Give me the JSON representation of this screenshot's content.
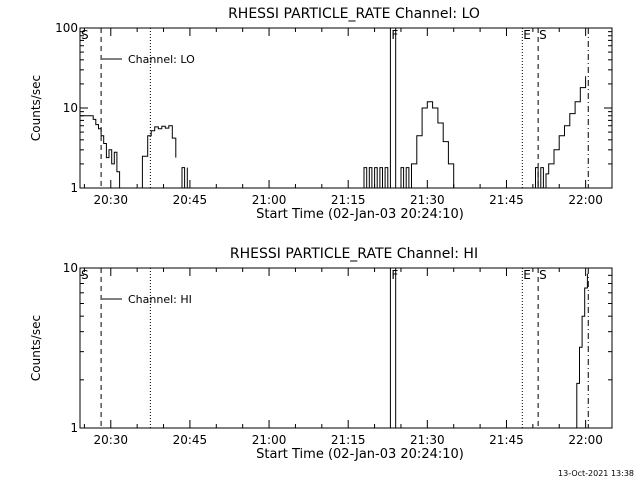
{
  "footer": {
    "timestamp": "13-Oct-2021 13:38"
  },
  "colors": {
    "background": "#ffffff",
    "foreground": "#000000"
  },
  "chart_data": [
    {
      "type": "line",
      "title": "RHESSI PARTICLE_RATE Channel: LO",
      "xlabel": "Start Time (02-Jan-03 20:24:10)",
      "ylabel": "Counts/sec",
      "y_scale": "log",
      "ylim": [
        1,
        100
      ],
      "y_ticks": [
        1,
        10,
        100
      ],
      "y_tick_labels": [
        "1",
        "10",
        "100"
      ],
      "xlim": [
        "20:24:10",
        "22:05:00"
      ],
      "x_ticks": [
        "20:30",
        "20:45",
        "21:00",
        "21:15",
        "21:30",
        "21:45",
        "22:00"
      ],
      "legend": {
        "label": "Channel: LO",
        "placement": "top-left"
      },
      "markers": [
        {
          "label": "S",
          "time": "20:24:10",
          "style": "dashed"
        },
        {
          "label": "",
          "time": "20:28:10",
          "style": "dashed"
        },
        {
          "label": "",
          "time": "20:37:30",
          "style": "dotted"
        },
        {
          "label": "F",
          "time": "21:23:00",
          "style": "solid"
        },
        {
          "label": "",
          "time": "21:24:00",
          "style": "solid"
        },
        {
          "label": "E",
          "time": "21:48:00",
          "style": "dotted"
        },
        {
          "label": "S",
          "time": "21:51:00",
          "style": "dashed"
        },
        {
          "label": "",
          "time": "22:00:30",
          "style": "dashdot"
        }
      ],
      "series": [
        {
          "name": "Channel: LO",
          "segments": [
            {
              "x": [
                "20:24:10",
                "20:25:00",
                "20:26:00",
                "20:26:40",
                "20:27:10",
                "20:27:40",
                "20:28:10",
                "20:28:40",
                "20:29:10",
                "20:29:40",
                "20:30:10",
                "20:30:40",
                "20:31:10",
                "20:31:40"
              ],
              "y": [
                8,
                8,
                8,
                7.2,
                6.2,
                5.5,
                4.5,
                3.6,
                2.4,
                3.0,
                2.0,
                2.8,
                1.6,
                1.0
              ]
            },
            {
              "x": [
                "20:35:00",
                "20:36:00",
                "20:37:00",
                "20:37:40",
                "20:38:20",
                "20:39:00",
                "20:39:40",
                "20:40:20",
                "20:41:00",
                "20:41:40",
                "20:42:20"
              ],
              "y": [
                1.0,
                2.5,
                4.5,
                5.2,
                5.8,
                5.5,
                5.9,
                5.6,
                6.0,
                4.2,
                2.4
              ]
            },
            {
              "x": [
                "20:43:10",
                "20:43:30",
                "20:44:00",
                "20:44:30"
              ],
              "y": [
                1.0,
                1.8,
                1.0,
                1.8
              ]
            },
            {
              "x": [
                "21:17:30",
                "21:18:00",
                "21:18:30",
                "21:19:00",
                "21:19:30",
                "21:20:00",
                "21:20:30",
                "21:21:00",
                "21:21:30",
                "21:22:00",
                "21:22:30"
              ],
              "y": [
                1.0,
                1.8,
                1.0,
                1.8,
                1.0,
                1.8,
                1.0,
                1.8,
                1.0,
                1.8,
                1.0
              ]
            },
            {
              "x": [
                "21:24:30",
                "21:25:00",
                "21:25:30",
                "21:26:00",
                "21:26:30",
                "21:27:00",
                "21:28:00",
                "21:29:00",
                "21:30:00",
                "21:31:00",
                "21:32:00",
                "21:33:00",
                "21:34:00",
                "21:35:00"
              ],
              "y": [
                1.0,
                1.8,
                1.0,
                1.8,
                1.0,
                2.0,
                4.5,
                10.0,
                12.0,
                10.0,
                6.5,
                3.8,
                2.0,
                1.0
              ]
            },
            {
              "x": [
                "21:50:00",
                "21:50:30",
                "21:51:00",
                "21:51:30",
                "21:52:00",
                "21:52:30",
                "21:53:00",
                "21:54:00",
                "21:55:00",
                "21:56:00",
                "21:57:00",
                "21:58:00",
                "21:59:00",
                "22:00:00"
              ],
              "y": [
                1.0,
                1.8,
                1.0,
                1.8,
                1.0,
                1.5,
                2.0,
                3.0,
                4.5,
                6.0,
                8.5,
                12.0,
                18.0,
                25.0
              ]
            }
          ]
        }
      ]
    },
    {
      "type": "line",
      "title": "RHESSI PARTICLE_RATE Channel: HI",
      "xlabel": "Start Time (02-Jan-03 20:24:10)",
      "ylabel": "Counts/sec",
      "y_scale": "log",
      "ylim": [
        1,
        10
      ],
      "y_ticks": [
        1,
        10
      ],
      "y_tick_labels": [
        "1",
        "10"
      ],
      "xlim": [
        "20:24:10",
        "22:05:00"
      ],
      "x_ticks": [
        "20:30",
        "20:45",
        "21:00",
        "21:15",
        "21:30",
        "21:45",
        "22:00"
      ],
      "legend": {
        "label": "Channel: HI",
        "placement": "top-left"
      },
      "markers": [
        {
          "label": "S",
          "time": "20:24:10",
          "style": "dashed"
        },
        {
          "label": "",
          "time": "20:28:10",
          "style": "dashed"
        },
        {
          "label": "",
          "time": "20:37:30",
          "style": "dotted"
        },
        {
          "label": "F",
          "time": "21:23:00",
          "style": "solid"
        },
        {
          "label": "",
          "time": "21:24:00",
          "style": "solid"
        },
        {
          "label": "E",
          "time": "21:48:00",
          "style": "dotted"
        },
        {
          "label": "S",
          "time": "21:51:00",
          "style": "dashed"
        },
        {
          "label": "",
          "time": "22:00:30",
          "style": "dashdot"
        }
      ],
      "series": [
        {
          "name": "Channel: HI",
          "segments": [
            {
              "x": [
                "21:57:50",
                "21:58:20",
                "21:58:50",
                "21:59:20",
                "21:59:50",
                "22:00:20"
              ],
              "y": [
                1.0,
                1.9,
                3.2,
                5.0,
                7.5,
                9.2
              ]
            }
          ]
        }
      ]
    }
  ]
}
